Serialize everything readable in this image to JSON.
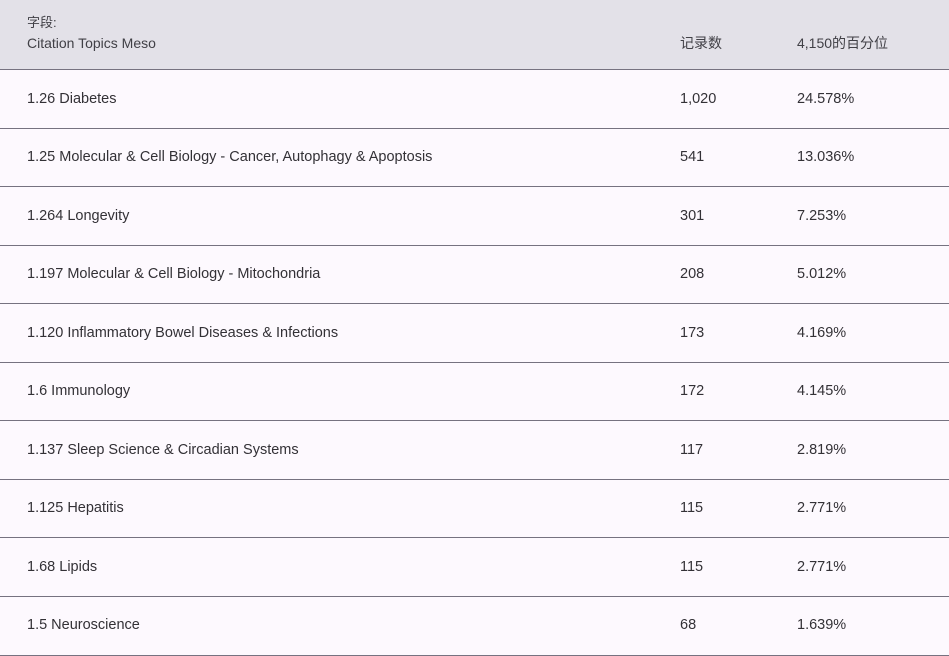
{
  "header": {
    "field_label": "字段:",
    "field_name": "Citation Topics Meso",
    "records_label": "记录数",
    "percent_label": "4,150的百分位"
  },
  "rows": [
    {
      "topic": "1.26 Diabetes",
      "count": "1,020",
      "percent": "24.578%"
    },
    {
      "topic": "1.25 Molecular & Cell Biology - Cancer, Autophagy & Apoptosis",
      "count": "541",
      "percent": "13.036%"
    },
    {
      "topic": "1.264 Longevity",
      "count": "301",
      "percent": "7.253%"
    },
    {
      "topic": "1.197 Molecular & Cell Biology - Mitochondria",
      "count": "208",
      "percent": "5.012%"
    },
    {
      "topic": "1.120 Inflammatory Bowel Diseases & Infections",
      "count": "173",
      "percent": "4.169%"
    },
    {
      "topic": "1.6 Immunology",
      "count": "172",
      "percent": "4.145%"
    },
    {
      "topic": "1.137 Sleep Science & Circadian Systems",
      "count": "117",
      "percent": "2.819%"
    },
    {
      "topic": "1.125 Hepatitis",
      "count": "115",
      "percent": "2.771%"
    },
    {
      "topic": "1.68 Lipids",
      "count": "115",
      "percent": "2.771%"
    },
    {
      "topic": "1.5 Neuroscience",
      "count": "68",
      "percent": "1.639%"
    }
  ],
  "colors": {
    "header-bg": "#e3e1e8",
    "row-bg": "#fdf9fe",
    "divider": "#767280",
    "header-text": "#414046",
    "row-text": "#333136"
  }
}
